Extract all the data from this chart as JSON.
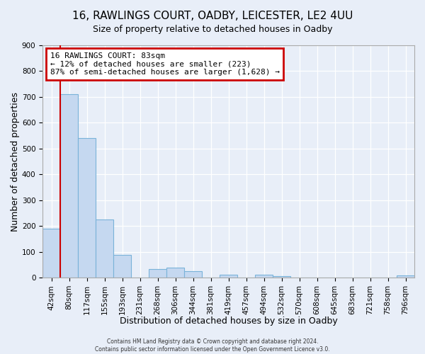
{
  "title1": "16, RAWLINGS COURT, OADBY, LEICESTER, LE2 4UU",
  "title2": "Size of property relative to detached houses in Oadby",
  "xlabel": "Distribution of detached houses by size in Oadby",
  "ylabel": "Number of detached properties",
  "bar_labels": [
    "42sqm",
    "80sqm",
    "117sqm",
    "155sqm",
    "193sqm",
    "231sqm",
    "268sqm",
    "306sqm",
    "344sqm",
    "381sqm",
    "419sqm",
    "457sqm",
    "494sqm",
    "532sqm",
    "570sqm",
    "608sqm",
    "645sqm",
    "683sqm",
    "721sqm",
    "758sqm",
    "796sqm"
  ],
  "bar_values": [
    190,
    710,
    540,
    225,
    90,
    0,
    35,
    40,
    25,
    0,
    13,
    0,
    13,
    7,
    0,
    0,
    0,
    0,
    0,
    0,
    8
  ],
  "bar_color": "#c5d8f0",
  "bar_edge_color": "#7ab3d9",
  "vline_x_data": 0.5,
  "vline_color": "#cc0000",
  "annotation_line1": "16 RAWLINGS COURT: 83sqm",
  "annotation_line2": "← 12% of detached houses are smaller (223)",
  "annotation_line3": "87% of semi-detached houses are larger (1,628) →",
  "annotation_box_bg": "white",
  "annotation_box_edge": "#cc0000",
  "ylim_max": 900,
  "yticks": [
    0,
    100,
    200,
    300,
    400,
    500,
    600,
    700,
    800,
    900
  ],
  "footer1": "Contains HM Land Registry data © Crown copyright and database right 2024.",
  "footer2": "Contains public sector information licensed under the Open Government Licence v3.0.",
  "bg_color": "#e8eef8",
  "grid_color": "#ffffff",
  "title1_fontsize": 11,
  "title2_fontsize": 9,
  "xlabel_fontsize": 9,
  "ylabel_fontsize": 9,
  "tick_fontsize": 7.5,
  "annot_fontsize": 8,
  "footer_fontsize": 5.5
}
